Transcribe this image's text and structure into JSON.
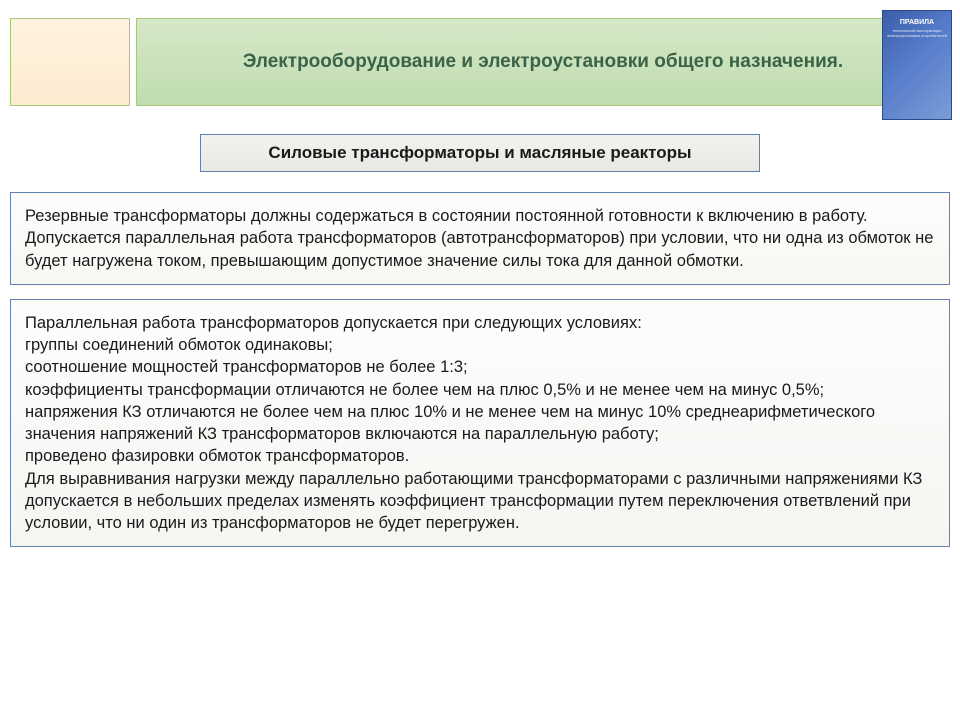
{
  "header": {
    "title": "Электрооборудование и электроустановки общего назначения."
  },
  "book": {
    "title": "ПРАВИЛА",
    "subtitle": "технической эксплуатации электроустановок потребителей"
  },
  "subtitle": "Силовые трансформаторы и масляные реакторы",
  "block1": {
    "text": "Резервные трансформаторы должны содержаться в состоянии постоянной готовности к включению в работу.\nДопускается параллельная работа трансформаторов (автотрансформаторов) при условии, что ни одна из обмоток не будет нагружена током, превышающим допустимое значение силы тока для данной обмотки."
  },
  "block2": {
    "text": "Параллельная работа трансформаторов допускается при следующих условиях:\nгруппы соединений обмоток одинаковы;\nсоотношение мощностей трансформаторов не более 1:3;\nкоэффициенты трансформации отличаются не более чем на плюс 0,5% и не менее чем на минус 0,5%;\nнапряжения КЗ отличаются не более чем на плюс 10% и не менее чем на минус 10% среднеарифметического значения напряжений КЗ трансформаторов включаются на параллельную работу;\nпроведено фазировки обмоток трансформаторов.\nДля выравнивания нагрузки между параллельно работающими трансформаторами с различными напряжениями КЗ допускается в небольших пределах изменять коэффициент трансформации путем переключения ответвлений при условии, что ни один из трансформаторов не будет перегружен."
  },
  "styles": {
    "header_bg": "#c0dcb0",
    "header_left_bg": "#fdebd0",
    "header_text_color": "#3a6348",
    "subtitle_bg": "#e8e8e4",
    "border_color": "#6080b0",
    "content_bg": "#f7f7f4",
    "text_color": "#1a1a1a",
    "book_bg": "#5479c8",
    "title_fontsize": 19,
    "subtitle_fontsize": 17,
    "body_fontsize": 16.5
  }
}
